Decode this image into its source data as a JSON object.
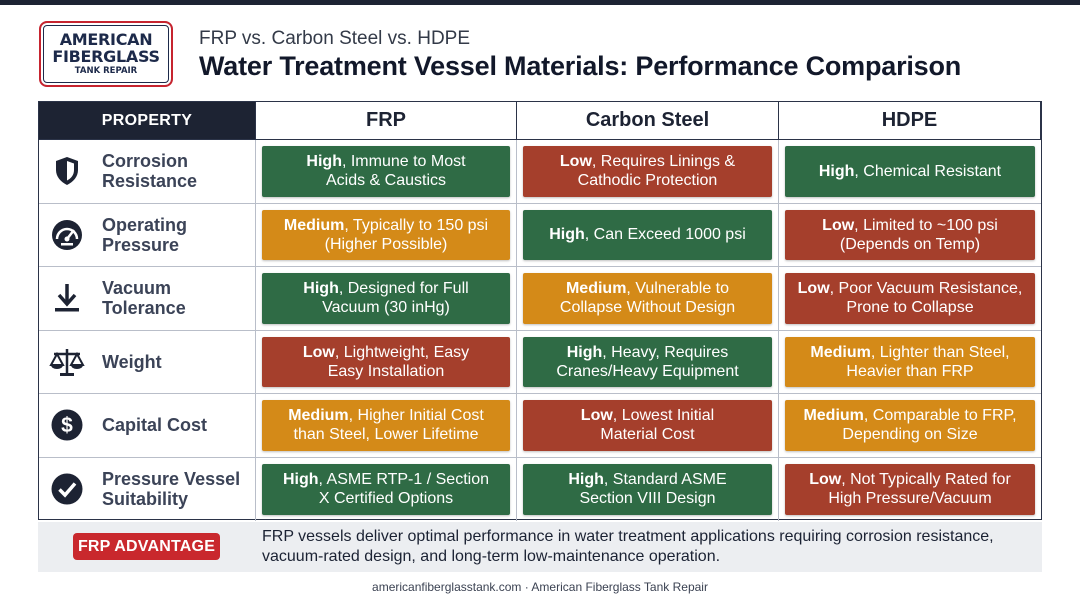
{
  "brand": {
    "logo_line1": "AMERICAN",
    "logo_line2": "FIBERGLASS",
    "logo_line3": "TANK REPAIR",
    "primary_color": "#1d2a4a",
    "accent_color": "#c6242f"
  },
  "header": {
    "subtitle": "FRP vs. Carbon Steel vs. HDPE",
    "title": "Water Treatment Vessel Materials: Performance Comparison"
  },
  "table": {
    "columns": [
      "PROPERTY",
      "FRP",
      "Carbon Steel",
      "HDPE"
    ],
    "rating_colors": {
      "High": "#2f6b45",
      "Medium": "#d48a18",
      "Low": "#a53f2c"
    },
    "rows": [
      {
        "icon": "shield-icon",
        "property_line1": "Corrosion",
        "property_line2": "Resistance",
        "values": [
          {
            "rating": "High",
            "line1": ", Immune to Most",
            "line2": "Acids & Caustics"
          },
          {
            "rating": "Low",
            "line1": ", Requires Linings &",
            "line2": "Cathodic Protection"
          },
          {
            "rating": "High",
            "line1": ", Chemical Resistant",
            "line2": ""
          }
        ]
      },
      {
        "icon": "gauge-icon",
        "property_line1": "Operating",
        "property_line2": "Pressure",
        "values": [
          {
            "rating": "Medium",
            "line1": ", Typically to 150 psi",
            "line2": "(Higher Possible)"
          },
          {
            "rating": "High",
            "line1": ", Can Exceed 1000 psi",
            "line2": ""
          },
          {
            "rating": "Low",
            "line1": ", Limited to ~100 psi",
            "line2": "(Depends on Temp)"
          }
        ]
      },
      {
        "icon": "download-arrow-icon",
        "property_line1": "Vacuum",
        "property_line2": "Tolerance",
        "values": [
          {
            "rating": "High",
            "line1": ", Designed for Full",
            "line2": "Vacuum (30 inHg)"
          },
          {
            "rating": "Medium",
            "line1": ", Vulnerable to",
            "line2": "Collapse Without Design"
          },
          {
            "rating": "Low",
            "line1": ", Poor Vacuum Resistance,",
            "line2": "Prone to Collapse"
          }
        ]
      },
      {
        "icon": "balance-scale-icon",
        "property_line1": "Weight",
        "property_line2": "",
        "values": [
          {
            "rating": "Low",
            "line1": ", Lightweight, Easy",
            "line2": "Easy Installation"
          },
          {
            "rating": "High",
            "line1": ", Heavy, Requires",
            "line2": "Cranes/Heavy Equipment"
          },
          {
            "rating": "Medium",
            "line1": ", Lighter than Steel,",
            "line2": "Heavier than FRP"
          }
        ]
      },
      {
        "icon": "dollar-icon",
        "property_line1": "Capital Cost",
        "property_line2": "",
        "values": [
          {
            "rating": "Medium",
            "line1": ", Higher Initial Cost",
            "line2": "than Steel, Lower Lifetime"
          },
          {
            "rating": "Low",
            "line1": ", Lowest Initial",
            "line2": "Material Cost"
          },
          {
            "rating": "Medium",
            "line1": ", Comparable to FRP,",
            "line2": "Depending on Size"
          }
        ]
      },
      {
        "icon": "checkmark-circle-icon",
        "property_line1": "Pressure Vessel",
        "property_line2": "Suitability",
        "values": [
          {
            "rating": "High",
            "line1": ", ASME RTP-1 / Section",
            "line2": "X Certified Options"
          },
          {
            "rating": "High",
            "line1": ", Standard ASME",
            "line2": "Section VIII Design"
          },
          {
            "rating": "Low",
            "line1": ", Not Typically Rated for",
            "line2": "High Pressure/Vacuum"
          }
        ]
      }
    ]
  },
  "advantage": {
    "badge": "FRP ADVANTAGE",
    "text_line1": "FRP vessels deliver optimal performance in water treatment applications requiring corrosion resistance,",
    "text_line2": "vacuum-rated design, and long-term low-maintenance operation."
  },
  "footer": {
    "text": "americanfiberglasstank.com · American Fiberglass Tank Repair"
  }
}
